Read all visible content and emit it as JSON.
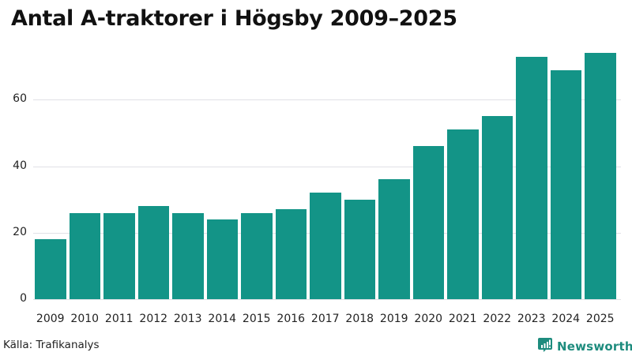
{
  "title": "Antal A-traktorer i Högsby 2009–2025",
  "source": "Källa: Trafikanalys",
  "brand": {
    "name": "Newsworthy",
    "icon": "newsworthy-logo-icon",
    "color": "#1e8c7e"
  },
  "colors": {
    "bar": "#139487",
    "grid": "#e1e1e6"
  },
  "chart_data": {
    "type": "bar",
    "title": "Antal A-traktorer i Högsby 2009–2025",
    "xlabel": "",
    "ylabel": "",
    "categories": [
      "2009",
      "2010",
      "2011",
      "2012",
      "2013",
      "2014",
      "2015",
      "2016",
      "2017",
      "2018",
      "2019",
      "2020",
      "2021",
      "2022",
      "2023",
      "2024",
      "2025"
    ],
    "values": [
      18,
      26,
      26,
      28,
      26,
      24,
      26,
      27,
      32,
      30,
      36,
      46,
      51,
      55,
      73,
      69,
      74
    ],
    "yticks": [
      0,
      20,
      40,
      60
    ],
    "ylim": [
      0,
      74
    ],
    "grid": true,
    "legend": null
  }
}
